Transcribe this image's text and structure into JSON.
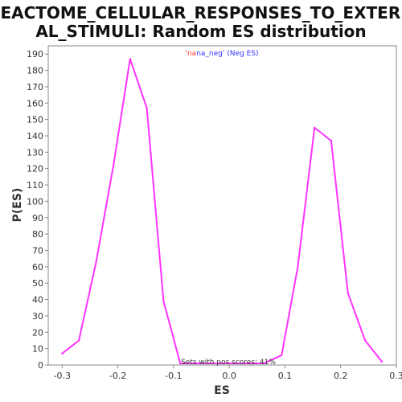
{
  "chart_data": {
    "type": "line",
    "title_lines": [
      "REACTOME_CELLULAR_RESPONSES_TO_EXTERN",
      "AL_STIMULI: Random ES distribution"
    ],
    "xlabel": "ES",
    "ylabel": "P(ES)",
    "xlim": [
      -0.325,
      0.3
    ],
    "ylim": [
      0,
      195
    ],
    "xticks": [
      -0.3,
      -0.2,
      -0.1,
      0.0,
      0.1,
      0.2,
      0.3
    ],
    "xtick_labels": [
      "-0.3",
      "-0.2",
      "-0.1",
      "0.0",
      "0.1",
      "0.2",
      "0.3"
    ],
    "yticks": [
      0,
      10,
      20,
      30,
      40,
      50,
      60,
      70,
      80,
      90,
      100,
      110,
      120,
      130,
      140,
      150,
      160,
      170,
      180,
      190
    ],
    "grid": false,
    "legend": {
      "placement": "top-center",
      "prefix": "'na",
      "name": "na_neg' (Neg ES)",
      "prefix_color": "#ff3333",
      "name_color": "#3333ff"
    },
    "annotation": "Sets with pos scores: 41%",
    "series": [
      {
        "color": "#ff33ff",
        "x": [
          -0.3,
          -0.27,
          -0.239,
          -0.208,
          -0.178,
          -0.148,
          -0.118,
          -0.088,
          0.062,
          0.094,
          0.123,
          0.153,
          0.183,
          0.213,
          0.244,
          0.274
        ],
        "y": [
          7,
          15,
          63,
          122,
          187,
          157,
          39,
          1,
          1,
          6,
          60,
          145,
          137,
          44,
          15,
          2
        ]
      }
    ]
  }
}
